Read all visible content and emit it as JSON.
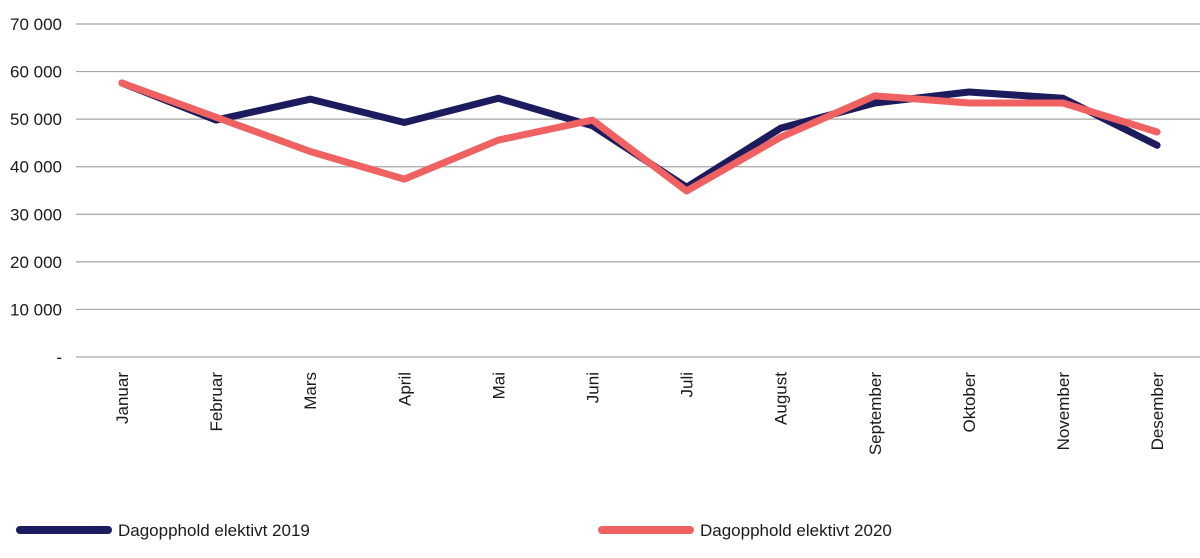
{
  "chart_data": {
    "type": "line",
    "title": "",
    "xlabel": "",
    "ylabel": "",
    "ylim": [
      0,
      70000
    ],
    "yticks": [
      0,
      10000,
      20000,
      30000,
      40000,
      50000,
      60000,
      70000
    ],
    "ytick_labels": [
      "-",
      "10 000",
      "20 000",
      "30 000",
      "40 000",
      "50 000",
      "60 000",
      "70 000"
    ],
    "grid": true,
    "categories": [
      "Januar",
      "Februar",
      "Mars",
      "April",
      "Mai",
      "Juni",
      "Juli",
      "August",
      "September",
      "Oktober",
      "November",
      "Desember"
    ],
    "series": [
      {
        "name": "Dagopphold elektivt 2019",
        "color": "#1b1b5e",
        "values": [
          57600,
          49800,
          54200,
          49300,
          54400,
          48600,
          35700,
          48100,
          53400,
          55700,
          54400,
          44500
        ]
      },
      {
        "name": "Dagopphold elektivt 2020",
        "color": "#f06262",
        "values": [
          57600,
          50400,
          43200,
          37400,
          45600,
          49800,
          34900,
          46200,
          54900,
          53400,
          53400,
          47300
        ]
      }
    ],
    "legend_position": "bottom"
  }
}
